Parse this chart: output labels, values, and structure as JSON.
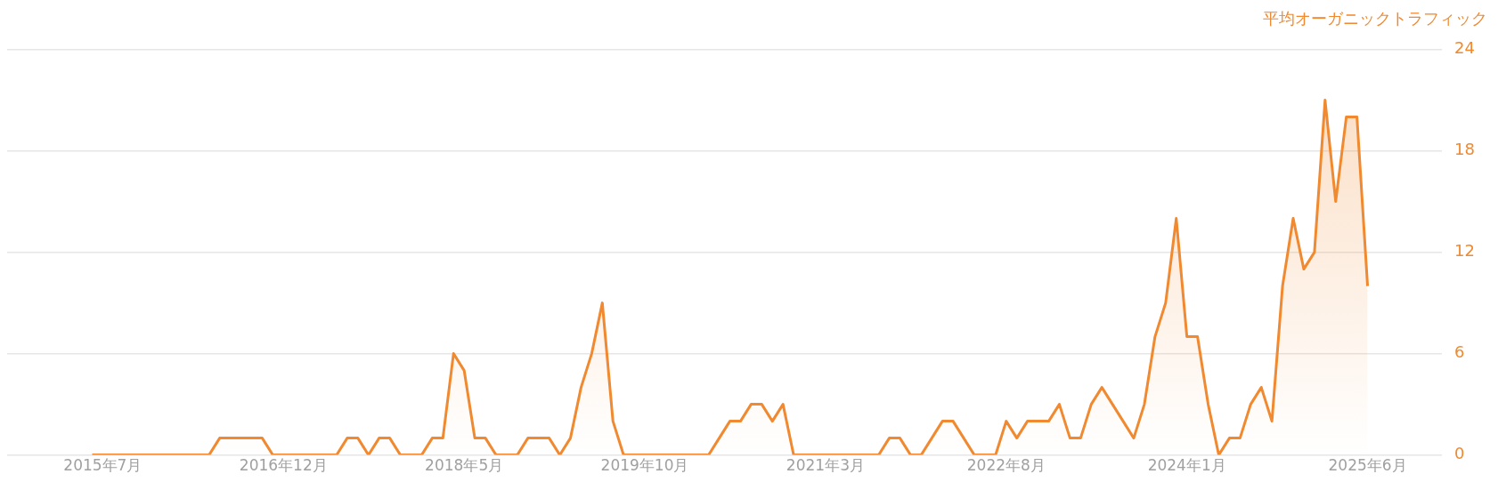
{
  "chart_data": {
    "type": "area",
    "ylabel": "平均オーガニックトラフィック",
    "x": [
      "2015-06",
      "2015-07",
      "2015-08",
      "2015-09",
      "2015-10",
      "2015-11",
      "2015-12",
      "2016-01",
      "2016-02",
      "2016-03",
      "2016-04",
      "2016-05",
      "2016-06",
      "2016-07",
      "2016-08",
      "2016-09",
      "2016-10",
      "2016-11",
      "2016-12",
      "2017-01",
      "2017-02",
      "2017-03",
      "2017-04",
      "2017-05",
      "2017-06",
      "2017-07",
      "2017-08",
      "2017-09",
      "2017-10",
      "2017-11",
      "2017-12",
      "2018-01",
      "2018-02",
      "2018-03",
      "2018-04",
      "2018-05",
      "2018-06",
      "2018-07",
      "2018-08",
      "2018-09",
      "2018-10",
      "2018-11",
      "2018-12",
      "2019-01",
      "2019-02",
      "2019-03",
      "2019-04",
      "2019-05",
      "2019-06",
      "2019-07",
      "2019-08",
      "2019-09",
      "2019-10",
      "2019-11",
      "2019-12",
      "2020-01",
      "2020-02",
      "2020-03",
      "2020-04",
      "2020-05",
      "2020-06",
      "2020-07",
      "2020-08",
      "2020-09",
      "2020-10",
      "2020-11",
      "2020-12",
      "2021-01",
      "2021-02",
      "2021-03",
      "2021-04",
      "2021-05",
      "2021-06",
      "2021-07",
      "2021-08",
      "2021-09",
      "2021-10",
      "2021-11",
      "2021-12",
      "2022-01",
      "2022-02",
      "2022-03",
      "2022-04",
      "2022-05",
      "2022-06",
      "2022-07",
      "2022-08",
      "2022-09",
      "2022-10",
      "2022-11",
      "2022-12",
      "2023-01",
      "2023-02",
      "2023-03",
      "2023-04",
      "2023-05",
      "2023-06",
      "2023-07",
      "2023-08",
      "2023-09",
      "2023-10",
      "2023-11",
      "2023-12",
      "2024-01",
      "2024-02",
      "2024-03",
      "2024-04",
      "2024-05",
      "2024-06",
      "2024-07",
      "2024-08",
      "2024-09",
      "2024-10",
      "2024-11",
      "2024-12",
      "2025-01",
      "2025-02",
      "2025-03",
      "2025-04",
      "2025-05",
      "2025-06"
    ],
    "series": [
      {
        "color": "#f0892f",
        "values": [
          0,
          0,
          0,
          0,
          0,
          0,
          0,
          0,
          0,
          0,
          0,
          0,
          1,
          1,
          1,
          1,
          1,
          0,
          0,
          0,
          0,
          0,
          0,
          0,
          1,
          1,
          0,
          1,
          1,
          0,
          0,
          0,
          1,
          1,
          6,
          5,
          1,
          1,
          0,
          0,
          0,
          1,
          1,
          1,
          0,
          1,
          4,
          6,
          9,
          2,
          0,
          0,
          0,
          0,
          0,
          0,
          0,
          0,
          0,
          1,
          2,
          2,
          3,
          3,
          2,
          3,
          0,
          0,
          0,
          0,
          0,
          0,
          0,
          0,
          0,
          1,
          1,
          0,
          0,
          1,
          2,
          2,
          1,
          0,
          0,
          0,
          2,
          1,
          2,
          2,
          2,
          3,
          1,
          1,
          3,
          4,
          3,
          2,
          1,
          3,
          7,
          9,
          14,
          7,
          7,
          3,
          0,
          1,
          1,
          3,
          4,
          2,
          10,
          14,
          11,
          12,
          21,
          15,
          20,
          20,
          10
        ]
      }
    ],
    "xlim": [
      "2014-10",
      "2026-01"
    ],
    "xticks": [
      {
        "value": "2015-07",
        "label": "2015年7月"
      },
      {
        "value": "2016-12",
        "label": "2016年12月"
      },
      {
        "value": "2018-05",
        "label": "2018年5月"
      },
      {
        "value": "2019-10",
        "label": "2019年10月"
      },
      {
        "value": "2021-03",
        "label": "2021年3月"
      },
      {
        "value": "2022-08",
        "label": "2022年8月"
      },
      {
        "value": "2024-01",
        "label": "2024年1月"
      },
      {
        "value": "2025-06",
        "label": "2025年6月"
      }
    ],
    "ylim": [
      0,
      24
    ],
    "yticks": [
      0,
      6,
      12,
      18,
      24
    ],
    "grid": "y",
    "legend": false,
    "marker": "none",
    "line_style": "solid"
  }
}
